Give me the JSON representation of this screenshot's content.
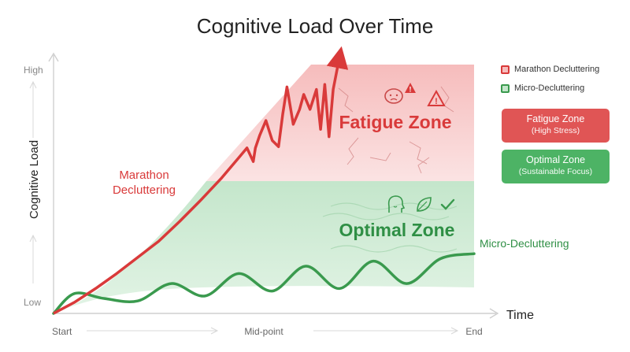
{
  "chart_data": {
    "type": "line",
    "title": "Cognitive Load Over Time",
    "xlabel": "Time",
    "ylabel": "Cognitive Load",
    "x_ticks": [
      "Start",
      "Mid-point",
      "End"
    ],
    "y_ticks": [
      "Low",
      "High"
    ],
    "xlim": [
      0,
      1
    ],
    "ylim": [
      0,
      1
    ],
    "zones": [
      {
        "name": "Fatigue Zone",
        "range": [
          0.52,
          1.0
        ],
        "color": "#f3aeae"
      },
      {
        "name": "Optimal Zone",
        "range": [
          0.05,
          0.52
        ],
        "color": "#bfe3c6"
      }
    ],
    "series": [
      {
        "name": "Marathon Decluttering",
        "color": "#d93a3a",
        "x": [
          0,
          0.05,
          0.1,
          0.15,
          0.2,
          0.25,
          0.3,
          0.35,
          0.4,
          0.42,
          0.44,
          0.46,
          0.475,
          0.48,
          0.49,
          0.505,
          0.52,
          0.535,
          0.545,
          0.555,
          0.57,
          0.585,
          0.595,
          0.61,
          0.625,
          0.635,
          0.645,
          0.655,
          0.665,
          0.68
        ],
        "y": [
          0,
          0.045,
          0.1,
          0.16,
          0.225,
          0.29,
          0.37,
          0.455,
          0.545,
          0.585,
          0.625,
          0.665,
          0.61,
          0.665,
          0.715,
          0.775,
          0.695,
          0.67,
          0.8,
          0.91,
          0.76,
          0.82,
          0.88,
          0.82,
          0.9,
          0.74,
          0.92,
          0.71,
          0.9,
          1.03
        ]
      },
      {
        "name": "Micro-Decluttering",
        "color": "#3a9a4e",
        "x": [
          0,
          0.05,
          0.12,
          0.2,
          0.28,
          0.36,
          0.44,
          0.52,
          0.6,
          0.68,
          0.76,
          0.84,
          0.92,
          1.0
        ],
        "y": [
          0,
          0.08,
          0.06,
          0.05,
          0.12,
          0.07,
          0.16,
          0.09,
          0.19,
          0.1,
          0.21,
          0.12,
          0.22,
          0.24
        ]
      }
    ],
    "legend_position": "top-right",
    "annotations": {
      "fatigue_zone_label": "Fatigue Zone",
      "optimal_zone_label": "Optimal Zone",
      "marathon_label_line1": "Marathon",
      "marathon_label_line2": "Decluttering",
      "micro_label": "Micro-Decluttering"
    }
  },
  "legend": {
    "marathon": "Marathon Decluttering",
    "micro": "Micro-Decluttering"
  },
  "cards": {
    "fatigue_title": "Fatigue Zone",
    "fatigue_sub": "(High Stress)",
    "optimal_title": "Optimal Zone",
    "optimal_sub": "(Sustainable Focus)"
  },
  "colors": {
    "red": "#d93a3a",
    "green": "#3a9a4e",
    "card_red": "#e05555",
    "card_green": "#4db365"
  }
}
